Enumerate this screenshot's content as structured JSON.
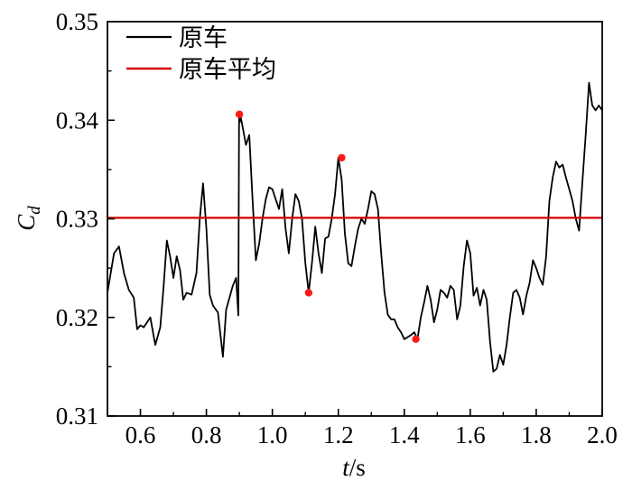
{
  "chart_data": {
    "type": "line",
    "xlabel_italic": "t",
    "xlabel_unit": "/s",
    "ylabel_main": "C",
    "ylabel_sub": "d",
    "xlim": [
      0.5,
      2.0
    ],
    "ylim": [
      0.31,
      0.35
    ],
    "x_ticks": [
      "0.6",
      "0.8",
      "1.0",
      "1.2",
      "1.4",
      "1.6",
      "1.8",
      "2.0"
    ],
    "y_ticks": [
      "0.31",
      "0.32",
      "0.33",
      "0.34",
      "0.35"
    ],
    "grid": false,
    "legend_placement": "top-left",
    "series": [
      {
        "name": "原车",
        "color": "#000000",
        "x": [
          0.5,
          0.52,
          0.535,
          0.55,
          0.565,
          0.58,
          0.59,
          0.6,
          0.61,
          0.62,
          0.63,
          0.645,
          0.66,
          0.67,
          0.68,
          0.69,
          0.7,
          0.71,
          0.72,
          0.73,
          0.74,
          0.755,
          0.77,
          0.78,
          0.79,
          0.8,
          0.81,
          0.82,
          0.835,
          0.85,
          0.86,
          0.87,
          0.88,
          0.89,
          0.897,
          0.899,
          0.901,
          0.903,
          0.91,
          0.92,
          0.93,
          0.94,
          0.95,
          0.96,
          0.97,
          0.98,
          0.99,
          1.0,
          1.01,
          1.02,
          1.03,
          1.04,
          1.05,
          1.06,
          1.07,
          1.08,
          1.09,
          1.1,
          1.11,
          1.12,
          1.13,
          1.14,
          1.15,
          1.16,
          1.17,
          1.18,
          1.19,
          1.2,
          1.21,
          1.22,
          1.23,
          1.24,
          1.25,
          1.26,
          1.27,
          1.28,
          1.29,
          1.3,
          1.31,
          1.32,
          1.33,
          1.34,
          1.35,
          1.36,
          1.37,
          1.38,
          1.39,
          1.4,
          1.41,
          1.42,
          1.43,
          1.44,
          1.45,
          1.46,
          1.47,
          1.48,
          1.49,
          1.5,
          1.51,
          1.52,
          1.53,
          1.54,
          1.55,
          1.56,
          1.57,
          1.58,
          1.59,
          1.6,
          1.61,
          1.62,
          1.63,
          1.64,
          1.65,
          1.66,
          1.67,
          1.68,
          1.69,
          1.7,
          1.71,
          1.72,
          1.73,
          1.74,
          1.75,
          1.76,
          1.77,
          1.78,
          1.79,
          1.8,
          1.81,
          1.82,
          1.83,
          1.84,
          1.85,
          1.86,
          1.87,
          1.88,
          1.89,
          1.9,
          1.91,
          1.92,
          1.93,
          1.94,
          1.95,
          1.96,
          1.97,
          1.98,
          1.99,
          2.0
        ],
        "y": [
          0.3225,
          0.3265,
          0.3272,
          0.3245,
          0.3228,
          0.322,
          0.3188,
          0.3192,
          0.319,
          0.3195,
          0.32,
          0.3172,
          0.319,
          0.323,
          0.3278,
          0.3262,
          0.324,
          0.3262,
          0.3248,
          0.3218,
          0.3225,
          0.3223,
          0.3245,
          0.33,
          0.3336,
          0.329,
          0.3223,
          0.3212,
          0.3205,
          0.316,
          0.3208,
          0.322,
          0.3232,
          0.324,
          0.3202,
          0.3405,
          0.3398,
          0.3405,
          0.3393,
          0.3375,
          0.3385,
          0.332,
          0.3258,
          0.3275,
          0.33,
          0.332,
          0.3332,
          0.333,
          0.332,
          0.331,
          0.333,
          0.329,
          0.3265,
          0.33,
          0.3325,
          0.3318,
          0.33,
          0.3255,
          0.3225,
          0.3255,
          0.3292,
          0.3265,
          0.3245,
          0.328,
          0.3282,
          0.33,
          0.3325,
          0.3362,
          0.334,
          0.3285,
          0.3255,
          0.3252,
          0.3272,
          0.329,
          0.33,
          0.3295,
          0.331,
          0.3328,
          0.3325,
          0.331,
          0.3265,
          0.3225,
          0.3203,
          0.3198,
          0.3198,
          0.319,
          0.3185,
          0.3178,
          0.318,
          0.3182,
          0.3185,
          0.3178,
          0.32,
          0.3215,
          0.3232,
          0.3218,
          0.3195,
          0.3208,
          0.3228,
          0.3225,
          0.322,
          0.3232,
          0.3228,
          0.3198,
          0.3212,
          0.3252,
          0.3278,
          0.3265,
          0.3222,
          0.323,
          0.3212,
          0.3228,
          0.3218,
          0.3175,
          0.3145,
          0.3148,
          0.3162,
          0.3152,
          0.3172,
          0.32,
          0.3225,
          0.3228,
          0.322,
          0.3203,
          0.3222,
          0.3235,
          0.3258,
          0.325,
          0.324,
          0.3233,
          0.3262,
          0.3318,
          0.3342,
          0.3358,
          0.3352,
          0.3355,
          0.3342,
          0.333,
          0.3318,
          0.33,
          0.3288,
          0.3338,
          0.3385,
          0.3438,
          0.3415,
          0.341,
          0.3415,
          0.341
        ]
      },
      {
        "name": "原车平均",
        "color": "#d40000",
        "x": [
          0.5,
          2.0
        ],
        "y": [
          0.3301,
          0.3301
        ]
      }
    ],
    "markers": {
      "color": "#ff1a1a",
      "points": [
        {
          "x": 0.9,
          "y": 0.3406
        },
        {
          "x": 1.11,
          "y": 0.3225
        },
        {
          "x": 1.21,
          "y": 0.3362
        },
        {
          "x": 1.435,
          "y": 0.3178
        }
      ]
    }
  }
}
